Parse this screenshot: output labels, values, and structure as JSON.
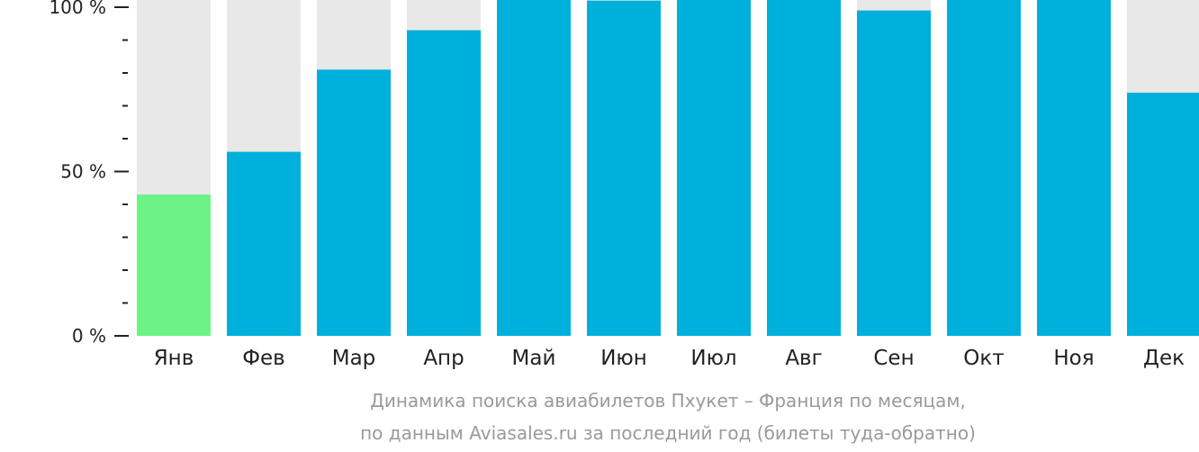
{
  "chart_data": {
    "type": "bar",
    "categories": [
      "Янв",
      "Фев",
      "Мар",
      "Апр",
      "Май",
      "Июн",
      "Июл",
      "Авг",
      "Сен",
      "Окт",
      "Ноя",
      "Дек"
    ],
    "values": [
      43,
      56,
      81,
      93,
      105,
      102,
      104,
      105,
      99,
      104,
      103,
      74
    ],
    "ylim": [
      0,
      100
    ],
    "yticks": [
      {
        "value": 100,
        "label": "100 %"
      },
      {
        "value": 50,
        "label": "50 %"
      },
      {
        "value": 0,
        "label": "0 %"
      }
    ],
    "minor_tick_step": 10,
    "grid": false,
    "colors": {
      "bar": "#00b0dc",
      "highlight_bar": "#6bf485",
      "background_bar": "#e8e8e8",
      "axis": "#222222"
    },
    "highlight_index": 0,
    "caption_lines": [
      "Динамика поиска авиабилетов Пхукет – Франция по месяцам,",
      "по данным Aviasales.ru за последний год (билеты туда-обратно)"
    ]
  }
}
